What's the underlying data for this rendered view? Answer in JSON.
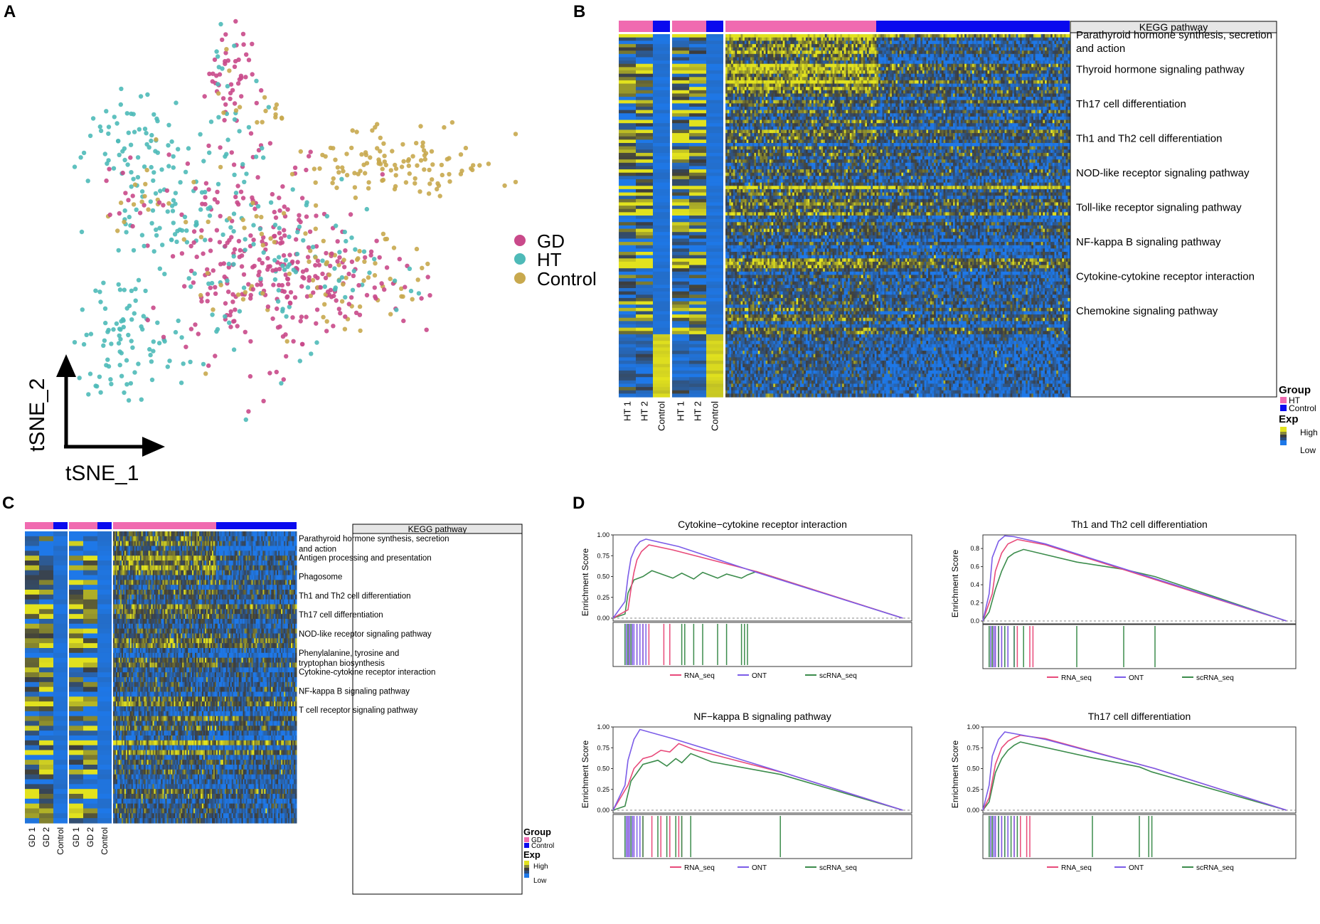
{
  "panel_labels": {
    "a": "A",
    "b": "B",
    "c": "C",
    "d": "D"
  },
  "colors": {
    "gd": "#c9498a",
    "ht": "#4ebab8",
    "control": "#c8a94e",
    "group_pink": "#f06ab0",
    "group_blue": "#0a0aee",
    "exp_high": "#e2e21e",
    "exp_mid": "#3c3c3c",
    "exp_low": "#1e78e8",
    "rna_seq": "#e84a7a",
    "ont": "#7b5ce8",
    "scrna_seq": "#3c8c4c"
  },
  "chart_data": [
    {
      "id": "tsne",
      "type": "scatter",
      "title": "",
      "xlabel": "tSNE_1",
      "ylabel": "tSNE_2",
      "legend": [
        {
          "name": "GD",
          "color": "#c9498a"
        },
        {
          "name": "HT",
          "color": "#4ebab8"
        },
        {
          "name": "Control",
          "color": "#c8a94e"
        }
      ],
      "clusters": [
        {
          "group": "GD",
          "cx": 35,
          "cy": 88,
          "sx": 3,
          "sy": 6,
          "n": 45
        },
        {
          "group": "HT",
          "cx": 34,
          "cy": 86,
          "sx": 3,
          "sy": 7,
          "n": 12
        },
        {
          "group": "Control",
          "cx": 37,
          "cy": 83,
          "sx": 3,
          "sy": 5,
          "n": 6
        },
        {
          "group": "HT",
          "cx": 12,
          "cy": 70,
          "sx": 6,
          "sy": 6,
          "n": 55
        },
        {
          "group": "HT",
          "cx": 22,
          "cy": 56,
          "sx": 9,
          "sy": 8,
          "n": 70
        },
        {
          "group": "Control",
          "cx": 13,
          "cy": 54,
          "sx": 3,
          "sy": 3,
          "n": 14
        },
        {
          "group": "GD",
          "cx": 14,
          "cy": 55,
          "sx": 4,
          "sy": 4,
          "n": 12
        },
        {
          "group": "HT",
          "cx": 11,
          "cy": 20,
          "sx": 6,
          "sy": 8,
          "n": 85
        },
        {
          "group": "GD",
          "cx": 40,
          "cy": 40,
          "sx": 11,
          "sy": 13,
          "n": 240
        },
        {
          "group": "HT",
          "cx": 40,
          "cy": 40,
          "sx": 12,
          "sy": 14,
          "n": 90
        },
        {
          "group": "Control",
          "cx": 40,
          "cy": 40,
          "sx": 12,
          "sy": 14,
          "n": 40
        },
        {
          "group": "Control",
          "cx": 74,
          "cy": 64,
          "sx": 10,
          "sy": 5,
          "n": 110
        },
        {
          "group": "Control",
          "cx": 64,
          "cy": 37,
          "sx": 9,
          "sy": 6,
          "n": 50
        },
        {
          "group": "GD",
          "cx": 62,
          "cy": 34,
          "sx": 9,
          "sy": 6,
          "n": 70
        },
        {
          "group": "HT",
          "cx": 60,
          "cy": 38,
          "sx": 9,
          "sy": 6,
          "n": 25
        },
        {
          "group": "Control",
          "cx": 45,
          "cy": 77,
          "sx": 2,
          "sy": 2,
          "n": 10
        },
        {
          "group": "HT",
          "cx": 39,
          "cy": 70,
          "sx": 4,
          "sy": 4,
          "n": 12
        }
      ]
    },
    {
      "id": "heatmap_b",
      "type": "heatmap",
      "annotation_header": "KEGG pathway",
      "column_labels": [
        "HT 1",
        "HT 2",
        "Control",
        "HT 1",
        "HT 2",
        "Control"
      ],
      "pathways": [
        "Parathyroid hormone synthesis, secretion and action",
        "Thyroid hormone signaling pathway",
        "Th17 cell differentiation",
        "Th1 and Th2 cell differentiation",
        "NOD-like receptor signaling pathway",
        "Toll-like receptor signaling pathway",
        "NF-kappa B signaling pathway",
        "Cytokine-cytokine receptor interaction",
        "Chemokine signaling pathway"
      ],
      "legend": {
        "group_title": "Group",
        "groups": [
          "HT",
          "Control"
        ],
        "exp_title": "Exp",
        "exp_high": "High",
        "exp_low": "Low"
      }
    },
    {
      "id": "heatmap_c",
      "type": "heatmap",
      "annotation_header": "KEGG pathway",
      "column_labels": [
        "GD 1",
        "GD 2",
        "Control",
        "GD 1",
        "GD 2",
        "Control"
      ],
      "pathways": [
        "Parathyroid hormone synthesis, secretion and action",
        "Antigen processing and presentation",
        "Phagosome",
        "Th1 and Th2 cell differentiation",
        "Th17 cell differentiation",
        "NOD-like receptor signaling pathway",
        "Phenylalanine, tyrosine and tryptophan biosynthesis",
        "Cytokine-cytokine receptor interaction",
        "NF-kappa B signaling pathway",
        "T cell receptor signaling pathway"
      ],
      "legend": {
        "group_title": "Group",
        "groups": [
          "GD",
          "Control"
        ],
        "exp_title": "Exp",
        "exp_high": "High",
        "exp_low": "Low"
      }
    },
    {
      "id": "gsea_d1",
      "type": "line",
      "title": "Cytokine−cytokine receptor interaction",
      "ylabel": "Enrichment Score",
      "ylim": [
        0,
        1.0
      ],
      "yticks": [
        "0.00",
        "0.25",
        "0.50",
        "0.75",
        "1.00"
      ],
      "ytick_values": [
        0,
        0.25,
        0.5,
        0.75,
        1.0
      ],
      "series": [
        {
          "name": "RNA_seq",
          "key": "rna_seq",
          "points": [
            [
              0.05,
              0.1
            ],
            [
              0.06,
              0.35
            ],
            [
              0.07,
              0.55
            ],
            [
              0.08,
              0.7
            ],
            [
              0.095,
              0.8
            ],
            [
              0.12,
              0.88
            ],
            [
              0.2,
              0.82
            ],
            [
              0.48,
              0.56
            ]
          ],
          "hits": [
            0.05,
            0.055,
            0.06,
            0.065,
            0.08,
            0.1,
            0.12,
            0.17,
            0.19
          ]
        },
        {
          "name": "ONT",
          "key": "ont",
          "points": [
            [
              0.04,
              0.2
            ],
            [
              0.05,
              0.5
            ],
            [
              0.06,
              0.72
            ],
            [
              0.075,
              0.85
            ],
            [
              0.09,
              0.92
            ],
            [
              0.11,
              0.95
            ],
            [
              0.22,
              0.86
            ],
            [
              0.48,
              0.55
            ]
          ],
          "hits": [
            0.04,
            0.045,
            0.05,
            0.055,
            0.06,
            0.065,
            0.07,
            0.08,
            0.09,
            0.1,
            0.11
          ]
        },
        {
          "name": "scRNA_seq",
          "key": "scrna_seq",
          "points": [
            [
              0.04,
              0.05
            ],
            [
              0.05,
              0.3
            ],
            [
              0.07,
              0.46
            ],
            [
              0.1,
              0.5
            ],
            [
              0.13,
              0.57
            ],
            [
              0.2,
              0.48
            ],
            [
              0.23,
              0.54
            ],
            [
              0.27,
              0.47
            ],
            [
              0.3,
              0.55
            ],
            [
              0.35,
              0.48
            ],
            [
              0.38,
              0.53
            ],
            [
              0.43,
              0.48
            ],
            [
              0.45,
              0.52
            ],
            [
              0.48,
              0.56
            ],
            [
              0.96,
              0.01
            ]
          ],
          "hits": [
            0.04,
            0.05,
            0.06,
            0.23,
            0.24,
            0.27,
            0.3,
            0.35,
            0.38,
            0.43,
            0.44,
            0.45
          ]
        }
      ],
      "legend": [
        "RNA_seq",
        "ONT",
        "scRNA_seq"
      ]
    },
    {
      "id": "gsea_d2",
      "type": "line",
      "title": "Th1 and Th2 cell differentiation",
      "ylabel": "Enrichment Score",
      "ylim": [
        0,
        0.95
      ],
      "yticks": [
        "0.0",
        "0.2",
        "0.4",
        "0.6",
        "0.8"
      ],
      "ytick_values": [
        0,
        0.2,
        0.4,
        0.6,
        0.8
      ],
      "series": [
        {
          "name": "RNA_seq",
          "key": "rna_seq",
          "points": [
            [
              0.03,
              0.3
            ],
            [
              0.04,
              0.55
            ],
            [
              0.06,
              0.75
            ],
            [
              0.08,
              0.85
            ],
            [
              0.11,
              0.9
            ],
            [
              0.2,
              0.84
            ],
            [
              0.63,
              0.37
            ]
          ],
          "hits": [
            0.03,
            0.035,
            0.04,
            0.05,
            0.06,
            0.08,
            0.11,
            0.15,
            0.16
          ]
        },
        {
          "name": "ONT",
          "key": "ont",
          "points": [
            [
              0.02,
              0.3
            ],
            [
              0.03,
              0.7
            ],
            [
              0.05,
              0.88
            ],
            [
              0.07,
              0.94
            ],
            [
              0.1,
              0.93
            ],
            [
              0.2,
              0.85
            ],
            [
              0.63,
              0.38
            ]
          ],
          "hits": [
            0.02,
            0.025,
            0.03,
            0.035,
            0.04,
            0.05,
            0.06,
            0.07,
            0.08,
            0.1
          ]
        },
        {
          "name": "scRNA_seq",
          "key": "scrna_seq",
          "points": [
            [
              0.02,
              0.1
            ],
            [
              0.04,
              0.35
            ],
            [
              0.06,
              0.55
            ],
            [
              0.08,
              0.7
            ],
            [
              0.1,
              0.75
            ],
            [
              0.13,
              0.79
            ],
            [
              0.3,
              0.65
            ],
            [
              0.45,
              0.57
            ],
            [
              0.55,
              0.49
            ],
            [
              0.97,
              0.0
            ]
          ],
          "hits": [
            0.02,
            0.03,
            0.05,
            0.07,
            0.1,
            0.13,
            0.3,
            0.45,
            0.55
          ]
        }
      ],
      "legend": [
        "RNA_seq",
        "ONT",
        "scRNA_seq"
      ]
    },
    {
      "id": "gsea_d3",
      "type": "line",
      "title": "NF−kappa B signaling pathway",
      "ylabel": "Enrichment Score",
      "ylim": [
        0,
        1.0
      ],
      "yticks": [
        "0.00",
        "0.25",
        "0.50",
        "0.75",
        "1.00"
      ],
      "ytick_values": [
        0,
        0.25,
        0.5,
        0.75,
        1.0
      ],
      "series": [
        {
          "name": "RNA_seq",
          "key": "rna_seq",
          "points": [
            [
              0.05,
              0.3
            ],
            [
              0.07,
              0.5
            ],
            [
              0.1,
              0.62
            ],
            [
              0.13,
              0.65
            ],
            [
              0.16,
              0.72
            ],
            [
              0.19,
              0.7
            ],
            [
              0.22,
              0.8
            ],
            [
              0.27,
              0.73
            ],
            [
              0.58,
              0.44
            ]
          ],
          "hits": [
            0.05,
            0.06,
            0.07,
            0.1,
            0.13,
            0.16,
            0.19,
            0.22,
            0.23
          ]
        },
        {
          "name": "ONT",
          "key": "ont",
          "points": [
            [
              0.04,
              0.3
            ],
            [
              0.05,
              0.6
            ],
            [
              0.07,
              0.85
            ],
            [
              0.09,
              0.97
            ],
            [
              0.2,
              0.86
            ],
            [
              0.58,
              0.44
            ]
          ],
          "hits": [
            0.04,
            0.045,
            0.05,
            0.055,
            0.06,
            0.065,
            0.07,
            0.08,
            0.09
          ]
        },
        {
          "name": "scRNA_seq",
          "key": "scrna_seq",
          "points": [
            [
              0.04,
              0.05
            ],
            [
              0.06,
              0.35
            ],
            [
              0.1,
              0.55
            ],
            [
              0.15,
              0.6
            ],
            [
              0.18,
              0.53
            ],
            [
              0.21,
              0.62
            ],
            [
              0.23,
              0.57
            ],
            [
              0.26,
              0.68
            ],
            [
              0.33,
              0.58
            ],
            [
              0.56,
              0.43
            ],
            [
              0.97,
              0.0
            ]
          ],
          "hits": [
            0.04,
            0.06,
            0.1,
            0.15,
            0.18,
            0.21,
            0.23,
            0.26,
            0.56
          ]
        }
      ],
      "legend": [
        "RNA_seq",
        "ONT",
        "scRNA_seq"
      ]
    },
    {
      "id": "gsea_d4",
      "type": "line",
      "title": "Th17 cell differentiation",
      "ylabel": "Enrichment Score",
      "ylim": [
        0,
        1.0
      ],
      "yticks": [
        "0.00",
        "0.25",
        "0.50",
        "0.75",
        "1.00"
      ],
      "ytick_values": [
        0,
        0.25,
        0.5,
        0.75,
        1.0
      ],
      "series": [
        {
          "name": "RNA_seq",
          "key": "rna_seq",
          "points": [
            [
              0.02,
              0.15
            ],
            [
              0.04,
              0.55
            ],
            [
              0.06,
              0.75
            ],
            [
              0.08,
              0.83
            ],
            [
              0.1,
              0.87
            ],
            [
              0.12,
              0.9
            ],
            [
              0.2,
              0.86
            ],
            [
              0.55,
              0.5
            ]
          ],
          "hits": [
            0.02,
            0.03,
            0.04,
            0.06,
            0.08,
            0.1,
            0.12,
            0.14,
            0.15
          ]
        },
        {
          "name": "ONT",
          "key": "ont",
          "points": [
            [
              0.02,
              0.3
            ],
            [
              0.03,
              0.65
            ],
            [
              0.05,
              0.85
            ],
            [
              0.07,
              0.94
            ],
            [
              0.1,
              0.92
            ],
            [
              0.2,
              0.85
            ],
            [
              0.55,
              0.5
            ]
          ],
          "hits": [
            0.02,
            0.025,
            0.03,
            0.035,
            0.04,
            0.05,
            0.06,
            0.07,
            0.08,
            0.1
          ]
        },
        {
          "name": "scRNA_seq",
          "key": "scrna_seq",
          "points": [
            [
              0.02,
              0.1
            ],
            [
              0.04,
              0.45
            ],
            [
              0.06,
              0.62
            ],
            [
              0.08,
              0.72
            ],
            [
              0.1,
              0.78
            ],
            [
              0.12,
              0.82
            ],
            [
              0.35,
              0.63
            ],
            [
              0.5,
              0.52
            ],
            [
              0.54,
              0.46
            ],
            [
              0.97,
              0.0
            ]
          ],
          "hits": [
            0.02,
            0.03,
            0.05,
            0.07,
            0.09,
            0.11,
            0.35,
            0.5,
            0.53,
            0.54
          ]
        }
      ],
      "legend": [
        "RNA_seq",
        "ONT",
        "scRNA_seq"
      ]
    }
  ]
}
